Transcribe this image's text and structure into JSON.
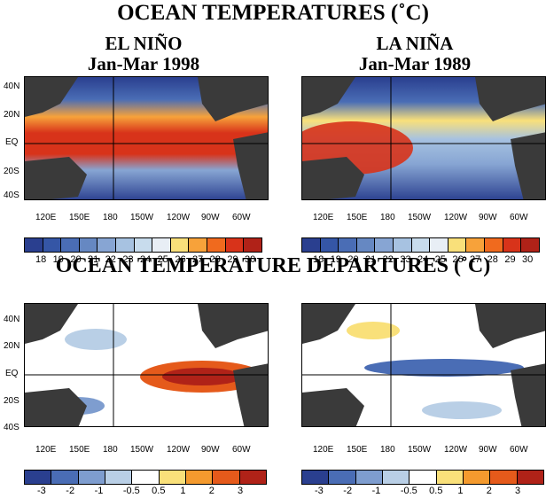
{
  "titles": {
    "temperatures": "OCEAN TEMPERATURES (˚C)",
    "departures": "OCEAN TEMPERATURE DEPARTURES (˚C)"
  },
  "panels": {
    "elnino": {
      "name": "EL NIÑO",
      "period": "Jan-Mar 1998"
    },
    "lanina": {
      "name": "LA NIÑA",
      "period": "Jan-Mar 1989"
    }
  },
  "lat_labels": [
    "40N",
    "20N",
    "EQ",
    "20S",
    "40S"
  ],
  "lon_labels": [
    "120E",
    "150E",
    "180",
    "150W",
    "120W",
    "90W",
    "60W"
  ],
  "temperature_scale": {
    "labels": [
      "18",
      "19",
      "20",
      "21",
      "22",
      "23",
      "24",
      "25",
      "26",
      "27",
      "28",
      "29",
      "30"
    ],
    "colors": [
      "#2a3f8f",
      "#3556a6",
      "#4a6db5",
      "#6688c2",
      "#87a5d3",
      "#a7c2e1",
      "#c8dced",
      "#e8eef5",
      "#f9e07a",
      "#f7a23a",
      "#f06a1e",
      "#d8331a",
      "#b02218"
    ]
  },
  "departure_scale": {
    "labels": [
      "-3",
      "-2",
      "-1",
      "-0.5",
      "0.5",
      "1",
      "2",
      "3"
    ],
    "colors": [
      "#2a3f8f",
      "#4a6db5",
      "#7e9dcf",
      "#b9cfe6",
      "#ffffff",
      "#f9e07a",
      "#f49a2e",
      "#e55a1b",
      "#b02218"
    ]
  },
  "colors": {
    "land": "#3a3a3a",
    "warm": "#d8331a",
    "cool": "#3556a6"
  }
}
